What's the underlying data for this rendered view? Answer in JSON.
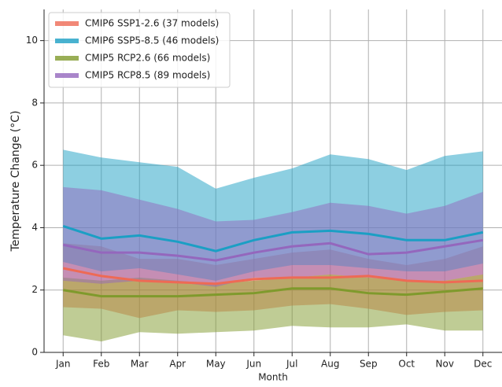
{
  "chart_data": {
    "type": "band-line",
    "x_label": "Month",
    "y_label": "Temperature Change (°C)",
    "categories": [
      "Jan",
      "Feb",
      "Mar",
      "Apr",
      "May",
      "Jun",
      "Jul",
      "Aug",
      "Sep",
      "Oct",
      "Nov",
      "Dec"
    ],
    "ylim": [
      0,
      11
    ],
    "yticks": [
      0,
      2,
      4,
      6,
      8,
      10
    ],
    "grid": true,
    "legend": "upper left",
    "series": [
      {
        "name": "CMIP6 SSP1-2.6 (37 models)",
        "color": "#ee6a55",
        "values": [
          2.7,
          2.45,
          2.3,
          2.25,
          2.2,
          2.35,
          2.4,
          2.4,
          2.45,
          2.3,
          2.25,
          2.3
        ],
        "lower": [
          1.45,
          1.4,
          1.1,
          1.35,
          1.3,
          1.35,
          1.5,
          1.55,
          1.4,
          1.2,
          1.3,
          1.35
        ],
        "upper": [
          3.5,
          3.4,
          3.0,
          3.0,
          2.8,
          3.0,
          3.2,
          3.3,
          3.0,
          2.8,
          3.0,
          3.4
        ]
      },
      {
        "name": "CMIP6 SSP5-8.5 (46 models)",
        "color": "#1b9fc4",
        "values": [
          4.05,
          3.65,
          3.75,
          3.55,
          3.25,
          3.6,
          3.85,
          3.9,
          3.8,
          3.6,
          3.6,
          3.85
        ],
        "lower": [
          2.9,
          2.6,
          2.7,
          2.5,
          2.3,
          2.6,
          2.8,
          2.8,
          2.7,
          2.6,
          2.6,
          2.85
        ],
        "upper": [
          6.5,
          6.25,
          6.1,
          5.95,
          5.25,
          5.6,
          5.9,
          6.35,
          6.2,
          5.85,
          6.3,
          6.45
        ]
      },
      {
        "name": "CMIP5 RCP2.6 (66 models)",
        "color": "#7f9a2c",
        "values": [
          2.0,
          1.8,
          1.8,
          1.8,
          1.85,
          1.9,
          2.05,
          2.05,
          1.9,
          1.85,
          1.95,
          2.05
        ],
        "lower": [
          0.55,
          0.35,
          0.65,
          0.6,
          0.65,
          0.7,
          0.85,
          0.8,
          0.8,
          0.9,
          0.7,
          0.7
        ],
        "upper": [
          2.4,
          2.3,
          2.4,
          2.3,
          2.2,
          2.3,
          2.4,
          2.5,
          2.4,
          2.3,
          2.3,
          2.5
        ]
      },
      {
        "name": "CMIP5 RCP8.5 (89 models)",
        "color": "#9467bd",
        "values": [
          3.45,
          3.2,
          3.2,
          3.1,
          2.95,
          3.2,
          3.4,
          3.5,
          3.15,
          3.2,
          3.4,
          3.6
        ],
        "lower": [
          2.3,
          2.2,
          2.3,
          2.25,
          2.1,
          2.4,
          2.4,
          2.5,
          2.4,
          2.3,
          2.3,
          2.5
        ],
        "upper": [
          5.3,
          5.2,
          4.9,
          4.6,
          4.2,
          4.25,
          4.5,
          4.8,
          4.7,
          4.45,
          4.7,
          5.15
        ]
      }
    ]
  }
}
